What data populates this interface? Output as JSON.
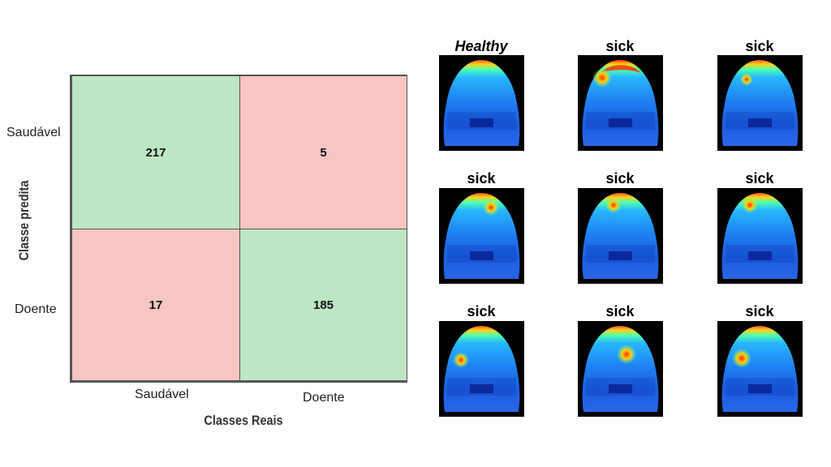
{
  "chart_data": {
    "type": "heatmap",
    "title": "",
    "xlabel": "Classes Reais",
    "ylabel": "Classe predita",
    "x_categories": [
      "Saudável",
      "Doente"
    ],
    "y_categories": [
      "Saudável",
      "Doente"
    ],
    "matrix": [
      [
        217,
        5
      ],
      [
        17,
        185
      ]
    ],
    "colors": {
      "correct": "#bde6c4",
      "incorrect": "#f5c6c2"
    }
  },
  "gallery": {
    "items": [
      {
        "label": "Healthy",
        "italic": true,
        "spot": "none"
      },
      {
        "label": "sick",
        "italic": false,
        "spot": "top-hot"
      },
      {
        "label": "sick",
        "italic": false,
        "spot": "upper-left"
      },
      {
        "label": "sick",
        "italic": false,
        "spot": "upper-right"
      },
      {
        "label": "sick",
        "italic": false,
        "spot": "upper-center"
      },
      {
        "label": "sick",
        "italic": false,
        "spot": "upper-center-left"
      },
      {
        "label": "sick",
        "italic": false,
        "spot": "mid-left"
      },
      {
        "label": "sick",
        "italic": false,
        "spot": "mid-right"
      },
      {
        "label": "sick",
        "italic": false,
        "spot": "mid-left-2"
      }
    ]
  }
}
